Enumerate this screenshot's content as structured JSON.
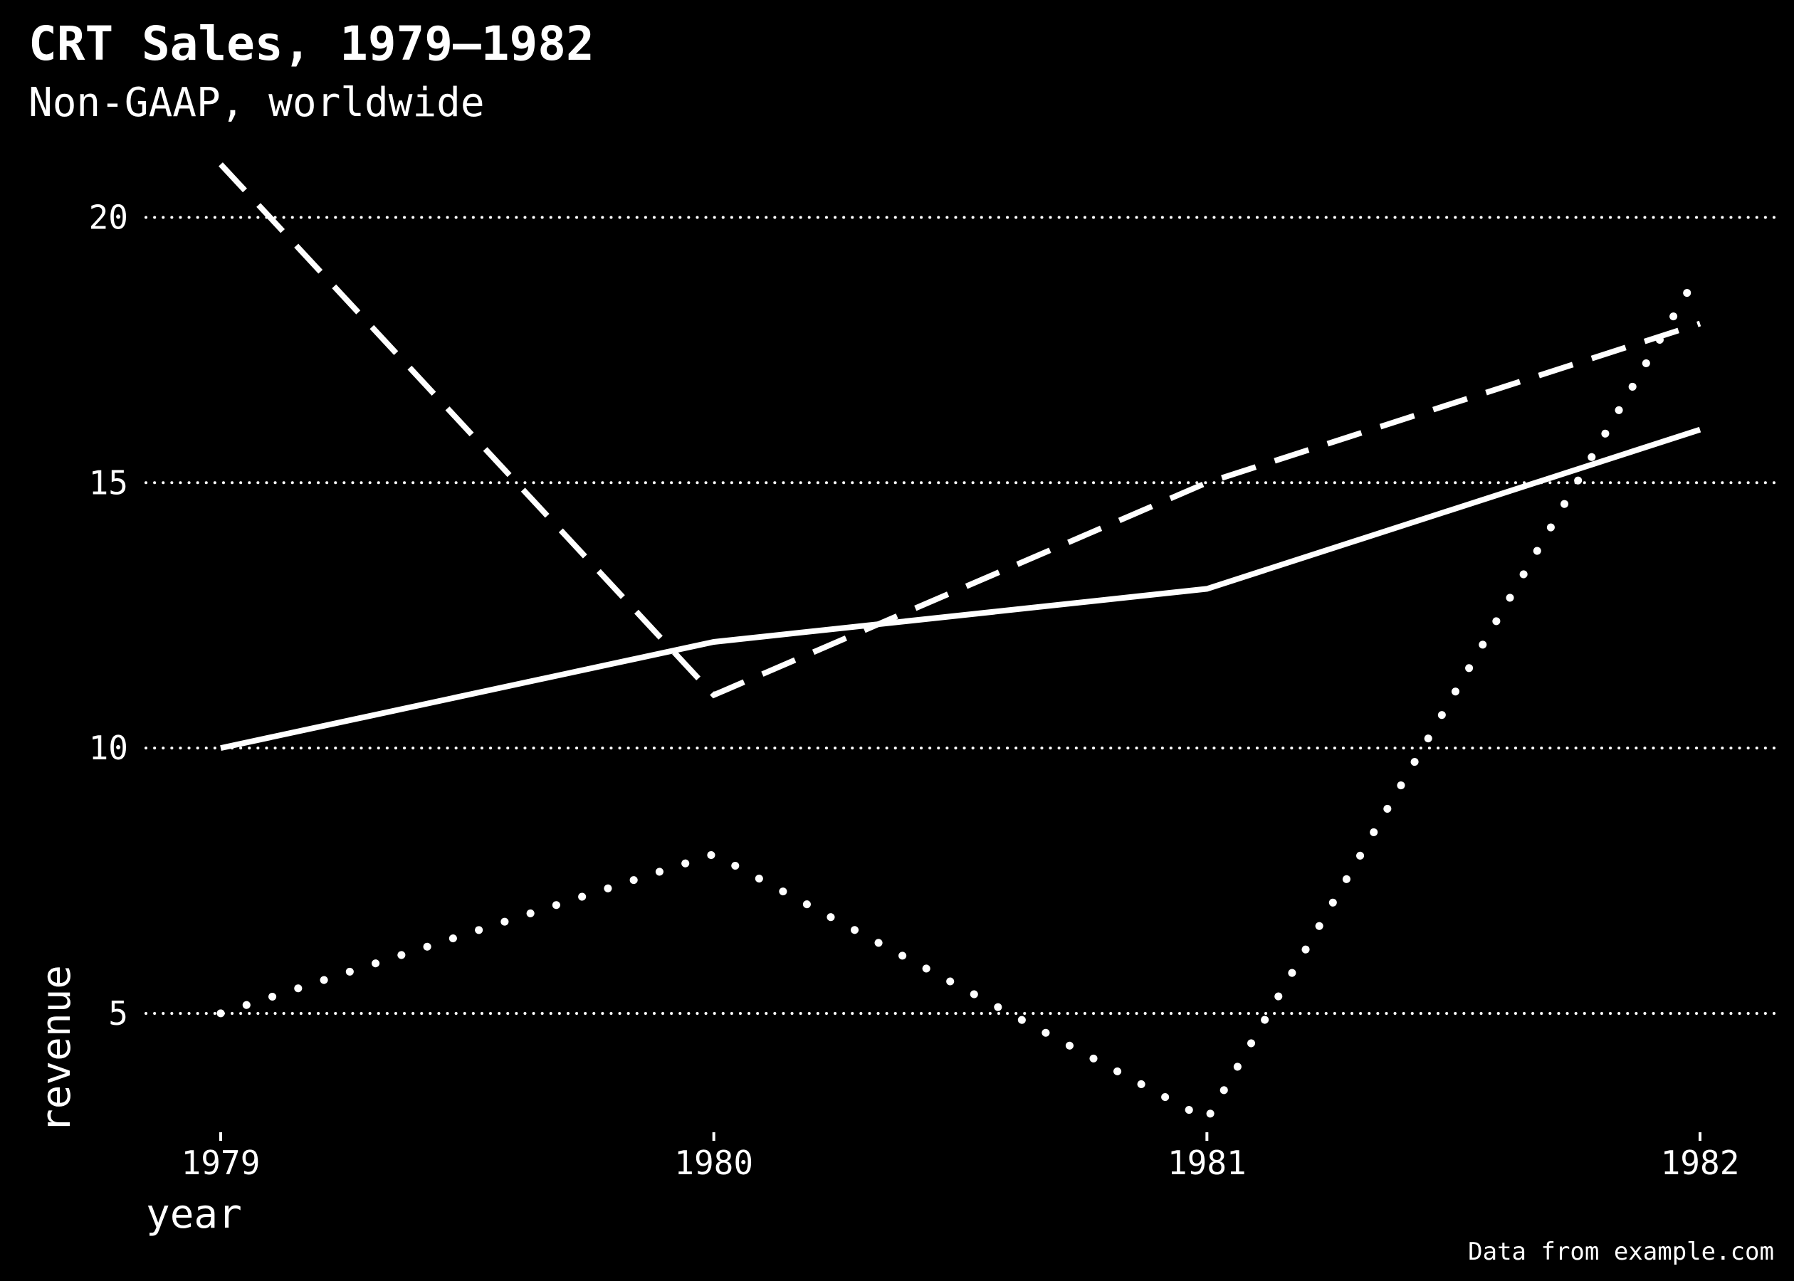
{
  "chart_data": {
    "type": "line",
    "title": "CRT Sales, 1979–1982",
    "subtitle": "Non-GAAP, worldwide",
    "xlabel": "year",
    "ylabel": "revenue",
    "caption": "Data from example.com",
    "x": [
      1979,
      1980,
      1981,
      1982
    ],
    "x_ticks": [
      "1979",
      "1980",
      "1981",
      "1982"
    ],
    "y_ticks": [
      5,
      10,
      15,
      20
    ],
    "ylim": [
      2.25,
      21.75
    ],
    "grid": "horizontal-dotted",
    "legend": "none",
    "series": [
      {
        "style": "solid",
        "values": [
          10,
          12,
          13,
          16
        ]
      },
      {
        "style": "dashed",
        "values": [
          21,
          11,
          15,
          18
        ]
      },
      {
        "style": "dotted",
        "values": [
          5,
          8,
          3,
          19
        ]
      }
    ],
    "colors": {
      "background": "#000000",
      "foreground": "#ffffff"
    }
  }
}
